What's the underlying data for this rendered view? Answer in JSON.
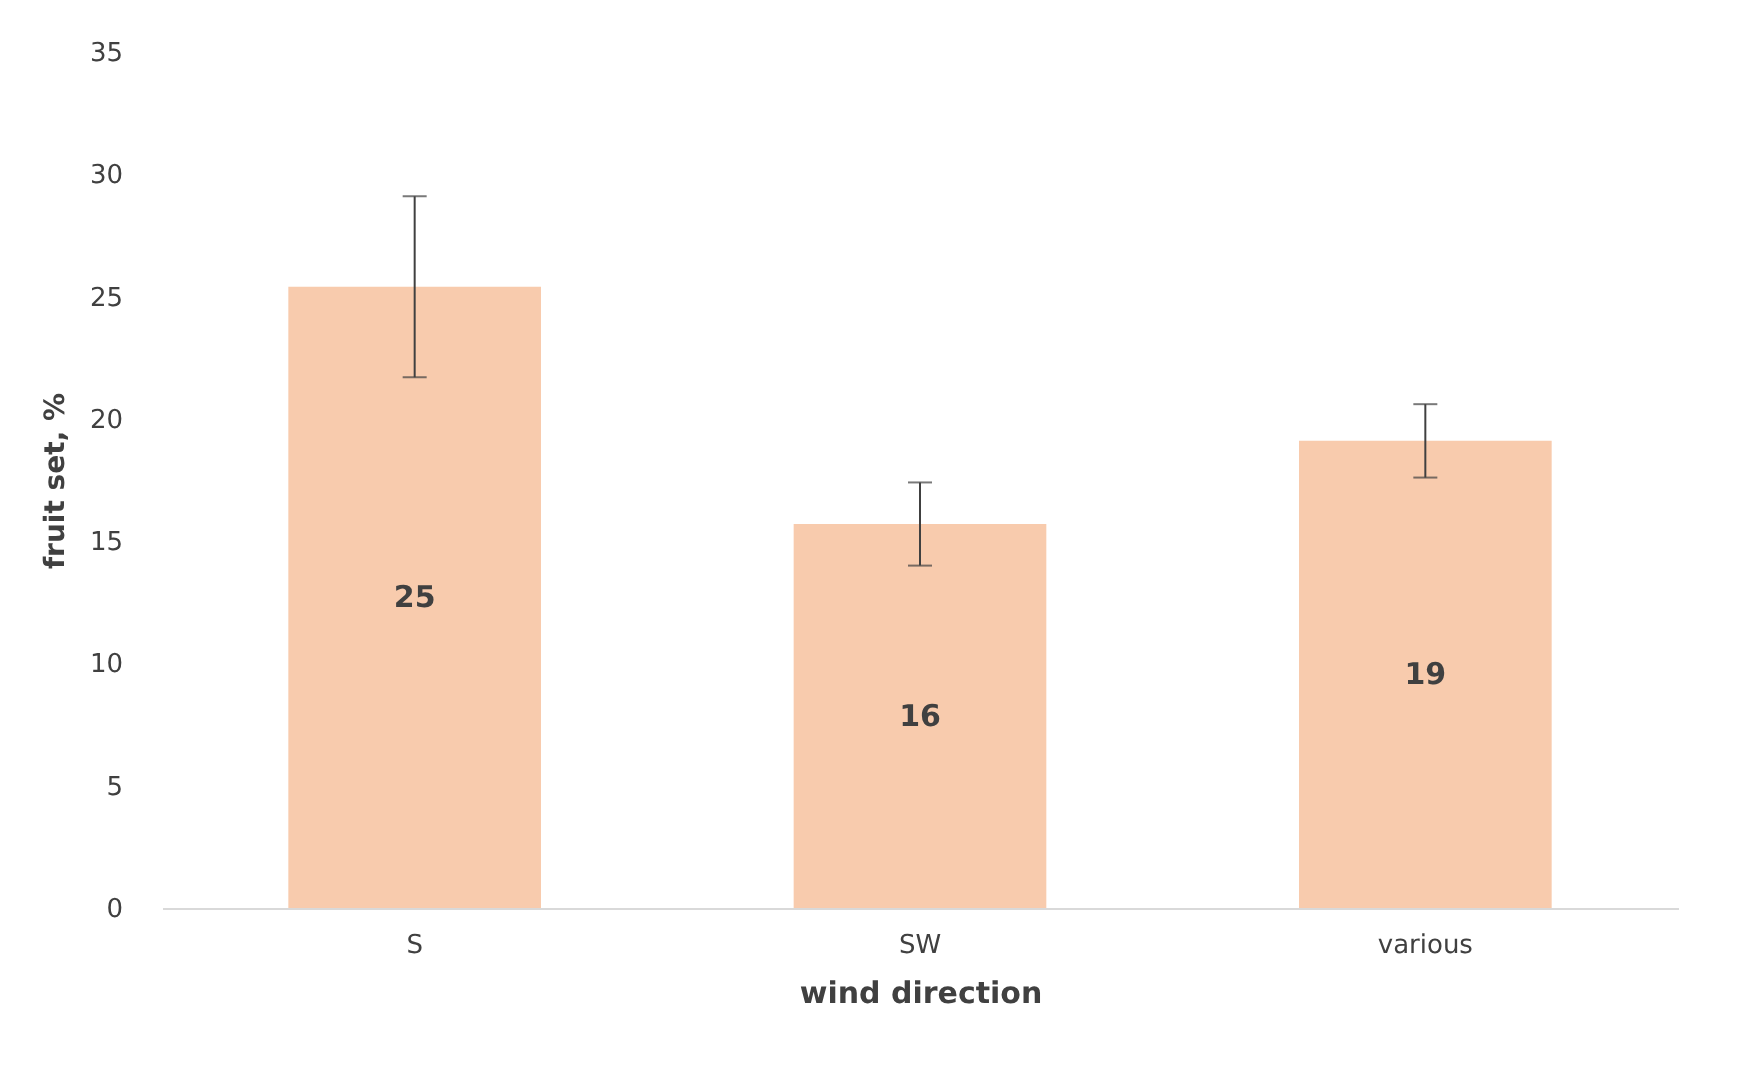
{
  "chart_data": {
    "type": "bar",
    "xlabel": "wind direction",
    "ylabel": "fruit set, %",
    "categories": [
      "S",
      "SW",
      "various"
    ],
    "values": [
      25.4,
      15.7,
      19.1
    ],
    "errors": [
      3.7,
      1.7,
      1.5
    ],
    "value_labels": [
      "25",
      "16",
      "19"
    ],
    "color": "#f8cbad",
    "ylim": [
      0,
      35
    ],
    "yticks": [
      0,
      5,
      10,
      15,
      20,
      25,
      30,
      35
    ],
    "grid": false
  }
}
